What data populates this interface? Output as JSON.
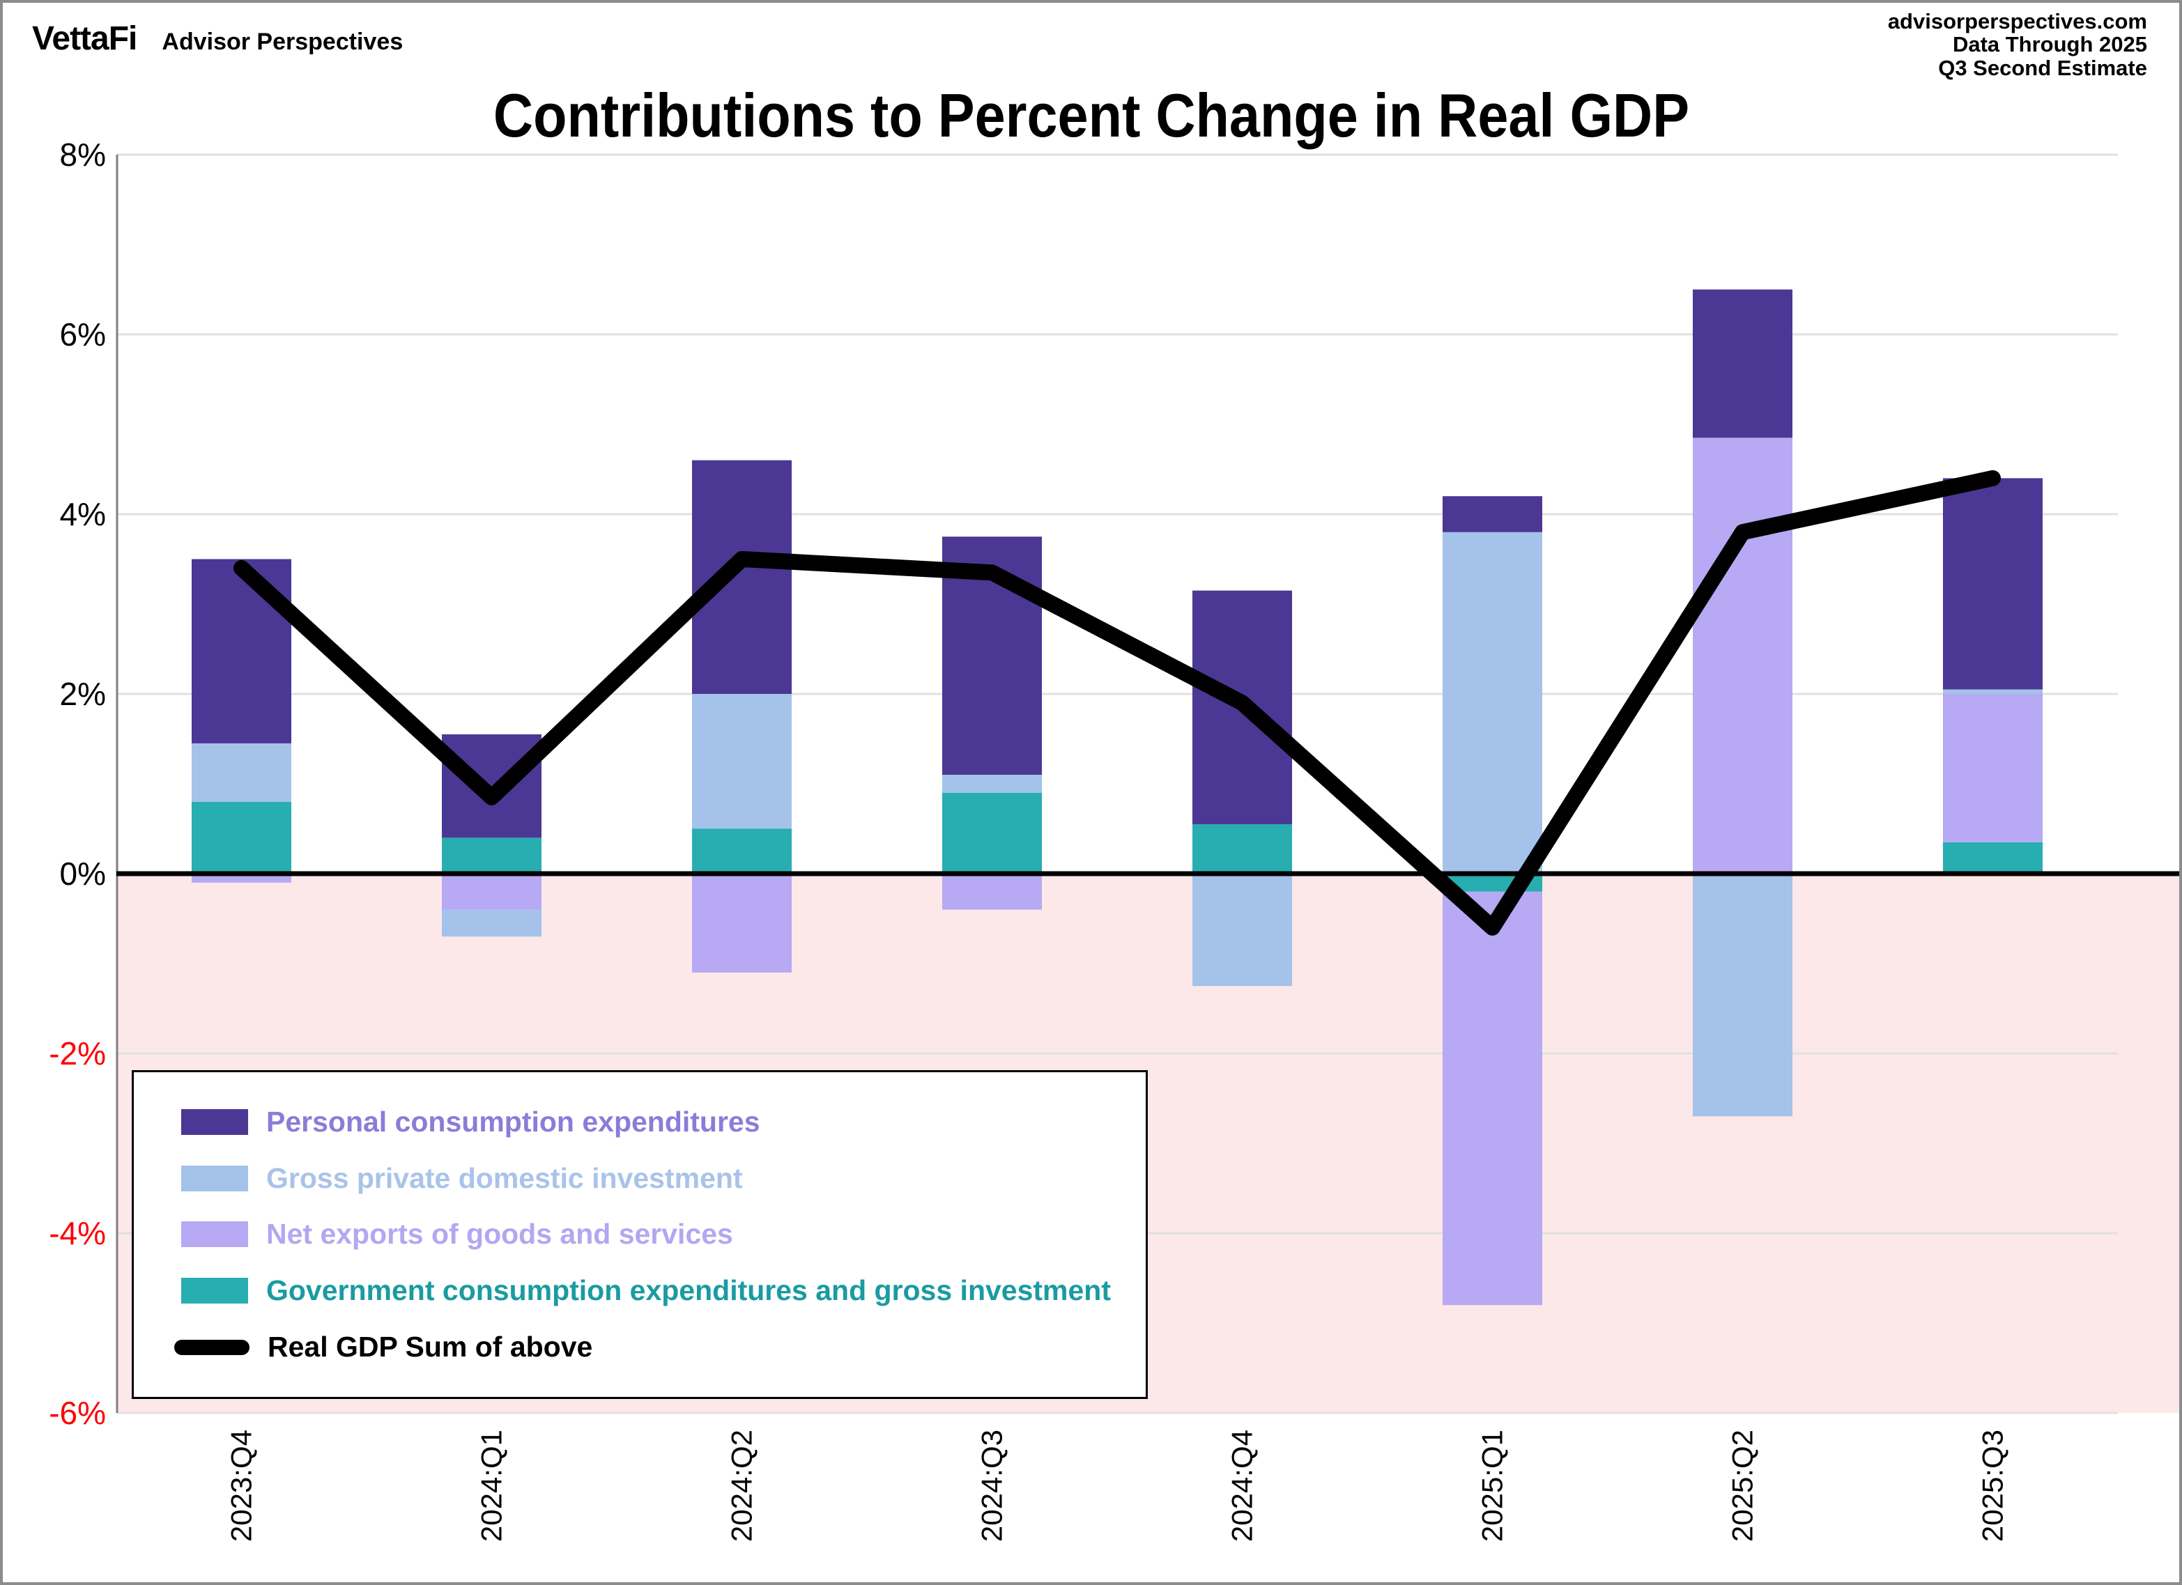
{
  "header": {
    "logo_text": "VettaFi",
    "logo_subtitle": "Advisor Perspectives",
    "source_line1": "advisorperspectives.com",
    "source_line2": "Data Through 2025",
    "source_line3": "Q3 Second Estimate"
  },
  "title": "Contributions to Percent Change in Real GDP",
  "chart_data": {
    "type": "bar",
    "subtype": "stacked-bar-with-line",
    "title": "Contributions to Percent Change in Real GDP",
    "categories": [
      "2023:Q4",
      "2024:Q1",
      "2024:Q2",
      "2024:Q3",
      "2024:Q4",
      "2025:Q1",
      "2025:Q2",
      "2025:Q3"
    ],
    "series": [
      {
        "name": "Personal consumption expenditures",
        "color": "#4B3794",
        "text_color": "#8B7CD9",
        "values": [
          2.05,
          1.15,
          2.6,
          2.65,
          2.6,
          0.4,
          1.65,
          2.35
        ]
      },
      {
        "name": "Gross private domestic investment",
        "color": "#A4C2EA",
        "text_color": "#A9C3E9",
        "values": [
          0.65,
          -0.3,
          1.5,
          0.2,
          -1.25,
          3.8,
          -2.7,
          0.05
        ]
      },
      {
        "name": "Net exports of goods and services",
        "color": "#B7A9F3",
        "text_color": "#B4A6F1",
        "values": [
          -0.1,
          -0.4,
          -1.1,
          -0.4,
          0.0,
          -4.6,
          4.85,
          1.65
        ]
      },
      {
        "name": "Government consumption expenditures and gross investment",
        "color": "#28ADB1",
        "text_color": "#1A9BA1",
        "values": [
          0.8,
          0.4,
          0.5,
          0.9,
          0.55,
          -0.2,
          0.0,
          0.35
        ]
      }
    ],
    "line_series": {
      "name": "Real GDP Sum of above",
      "color": "#000000",
      "values": [
        3.4,
        0.85,
        3.5,
        3.35,
        1.9,
        -0.6,
        3.8,
        4.4
      ]
    },
    "y_axis": {
      "min": -6,
      "max": 8,
      "step": 2,
      "ticks": [
        {
          "label": "8%",
          "value": 8
        },
        {
          "label": "6%",
          "value": 6
        },
        {
          "label": "4%",
          "value": 4
        },
        {
          "label": "2%",
          "value": 2
        },
        {
          "label": "0%",
          "value": 0
        },
        {
          "label": "-2%",
          "value": -2
        },
        {
          "label": "-4%",
          "value": -4
        },
        {
          "label": "-6%",
          "value": -6
        }
      ],
      "positive_tick_color": "#000000",
      "negative_tick_color": "#FF0000"
    },
    "grid": true,
    "gridline_color": "#E0E0E0",
    "axis_color": "#7F7F7F",
    "zero_line_color": "#000000",
    "negative_region_color": "#FCE8E9",
    "legend_position": "bottom-left"
  }
}
